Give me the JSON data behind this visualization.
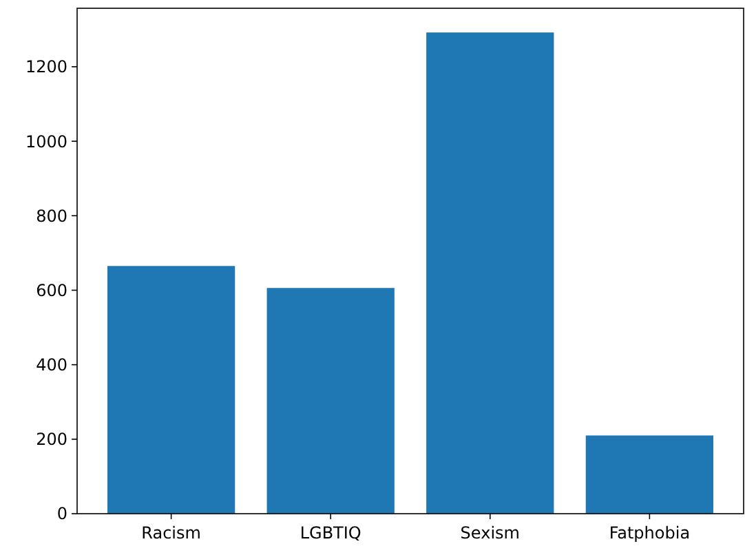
{
  "chart_data": {
    "type": "bar",
    "categories": [
      "Racism",
      "LGBTIQ",
      "Sexism",
      "Fatphobia"
    ],
    "values": [
      665,
      606,
      1292,
      210
    ],
    "color": "#1f77b4",
    "ylim": [
      0,
      1357
    ],
    "yticks": [
      0,
      200,
      400,
      600,
      800,
      1000,
      1200
    ],
    "grid": false
  }
}
